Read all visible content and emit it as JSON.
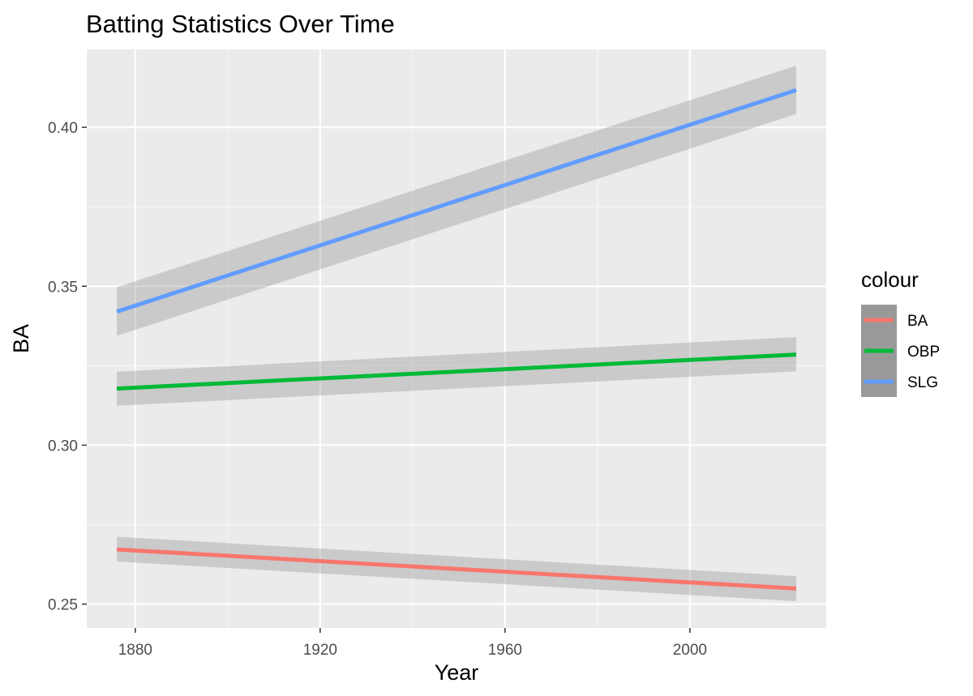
{
  "chart_data": {
    "type": "line",
    "title": "Batting Statistics Over Time",
    "xlabel": "Year",
    "ylabel": "BA",
    "xlim": [
      1869.5,
      2029.5
    ],
    "ylim": [
      0.2425,
      0.4245
    ],
    "x_ticks": [
      1880,
      1920,
      1960,
      2000
    ],
    "y_ticks": [
      0.25,
      0.3,
      0.35,
      0.4
    ],
    "y_tick_labels": [
      "0.25",
      "0.30",
      "0.35",
      "0.40"
    ],
    "grid": true,
    "legend": {
      "title": "colour",
      "placement": "right",
      "entries": [
        "BA",
        "OBP",
        "SLG"
      ]
    },
    "series": [
      {
        "name": "BA",
        "color": "#F8766D",
        "x": [
          1876,
          2023
        ],
        "y": [
          0.2672,
          0.2549
        ],
        "ci_lower": [
          0.2634,
          0.2509
        ],
        "ci_upper": [
          0.2712,
          0.2588
        ]
      },
      {
        "name": "OBP",
        "color": "#00BA38",
        "x": [
          1876,
          2023
        ],
        "y": [
          0.3178,
          0.3285
        ],
        "ci_lower": [
          0.3124,
          0.3232
        ],
        "ci_upper": [
          0.3231,
          0.334
        ]
      },
      {
        "name": "SLG",
        "color": "#619CFF",
        "x": [
          1876,
          2023
        ],
        "y": [
          0.342,
          0.4117
        ],
        "ci_lower": [
          0.3344,
          0.4042
        ],
        "ci_upper": [
          0.3497,
          0.4194
        ]
      }
    ],
    "smoothing_band_color": "#999999"
  }
}
